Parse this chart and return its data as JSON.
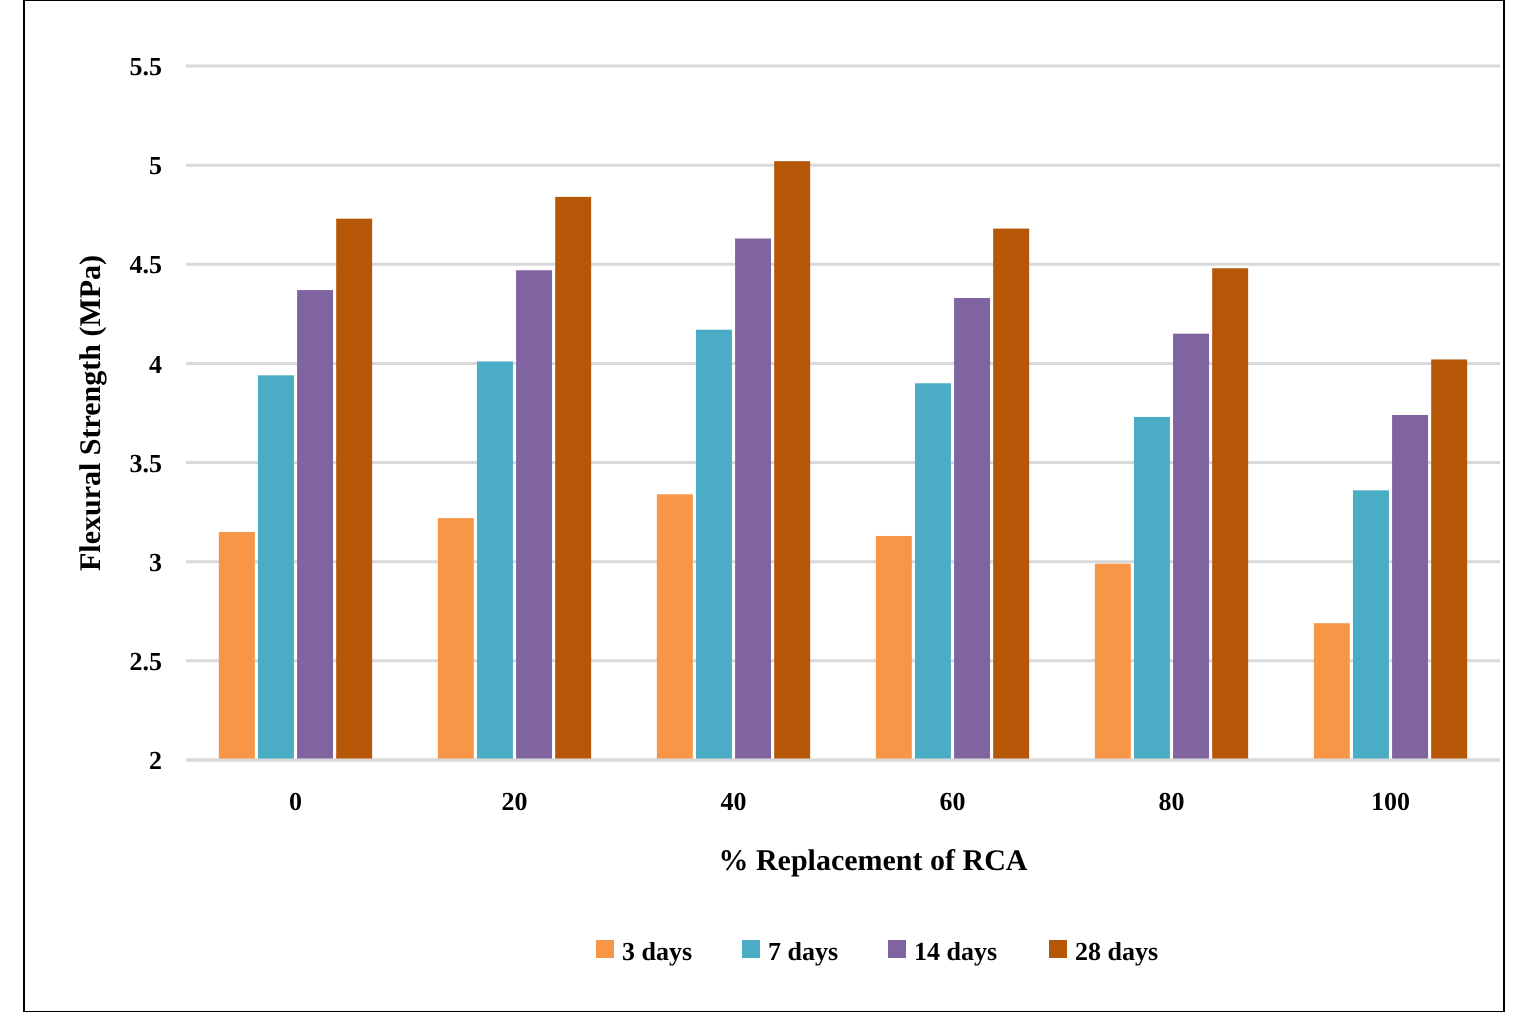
{
  "chart_data": {
    "type": "bar",
    "xlabel": "% Replacement of RCA",
    "ylabel": "Flexural Strength (MPa)",
    "categories": [
      "0",
      "20",
      "40",
      "60",
      "80",
      "100"
    ],
    "series": [
      {
        "name": "3 days",
        "color": "#f79646",
        "values": [
          3.15,
          3.22,
          3.34,
          3.13,
          2.99,
          2.69
        ]
      },
      {
        "name": "7 days",
        "color": "#4bacc6",
        "values": [
          3.94,
          4.01,
          4.17,
          3.9,
          3.73,
          3.36
        ]
      },
      {
        "name": "14 days",
        "color": "#8064a2",
        "values": [
          4.37,
          4.47,
          4.63,
          4.33,
          4.15,
          3.74
        ]
      },
      {
        "name": "28 days",
        "color": "#b65708",
        "values": [
          4.73,
          4.84,
          5.02,
          4.68,
          4.48,
          4.02
        ]
      }
    ],
    "ylim": [
      2,
      5.5
    ],
    "yticks": [
      2,
      2.5,
      3,
      3.5,
      4,
      4.5,
      5,
      5.5
    ],
    "grid": "y",
    "legend": "bottom"
  }
}
